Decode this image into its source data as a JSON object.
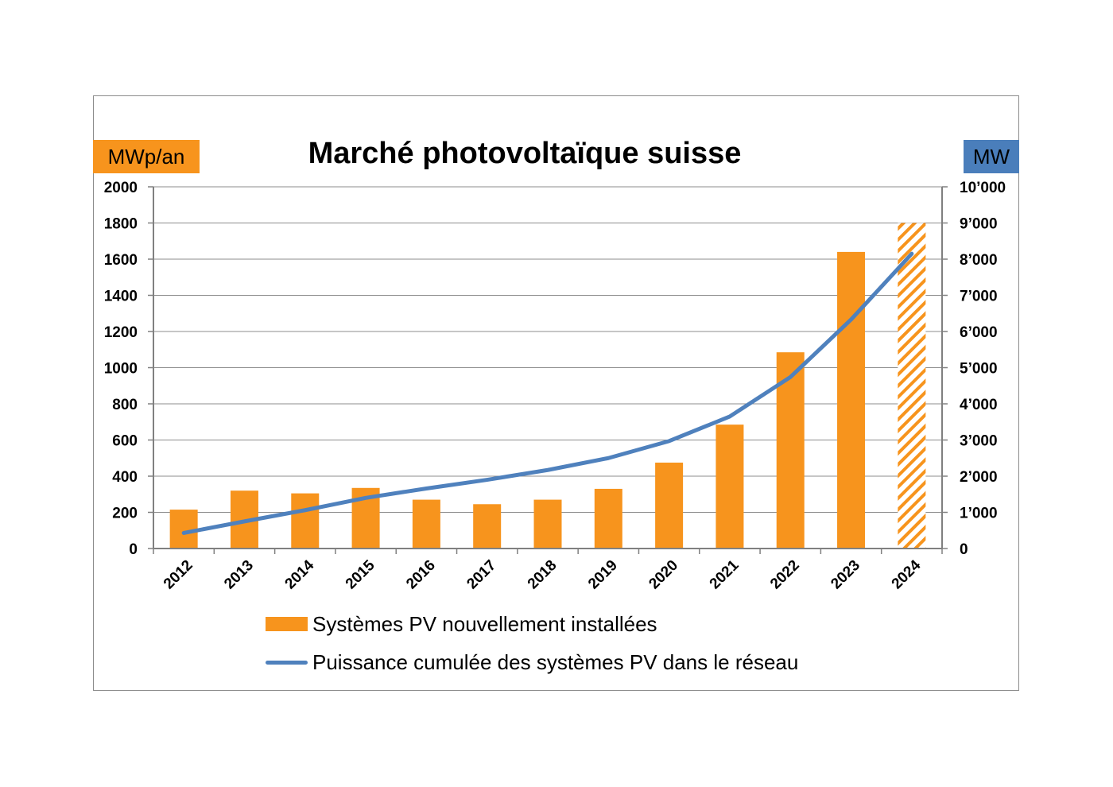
{
  "colors": {
    "bar": "#f7941d",
    "line": "#4f81bd",
    "unit_left_bg": "#f7941d",
    "unit_right_bg": "#4a7ebb",
    "grid": "#8c8c8c",
    "axis": "#808080"
  },
  "chart_data": {
    "type": "bar",
    "title": "Marché photovoltaïque suisse",
    "ylabel": "MWp/an",
    "y2label": "MW",
    "categories": [
      "2012",
      "2013",
      "2014",
      "2015",
      "2016",
      "2017",
      "2018",
      "2019",
      "2020",
      "2021",
      "2022",
      "2023",
      "2024"
    ],
    "series": [
      {
        "name": "Systèmes PV nouvellement installées",
        "type": "bar",
        "axis": "left",
        "values": [
          215,
          320,
          305,
          335,
          270,
          245,
          270,
          330,
          475,
          685,
          1085,
          1640,
          1800
        ],
        "hatched": [
          false,
          false,
          false,
          false,
          false,
          false,
          false,
          false,
          false,
          false,
          false,
          false,
          true
        ]
      },
      {
        "name": "Puissance cumulée des systèmes PV dans le réseau",
        "type": "line",
        "axis": "right",
        "values": [
          430,
          750,
          1060,
          1400,
          1660,
          1900,
          2170,
          2500,
          2970,
          3650,
          4740,
          6330,
          8150
        ]
      }
    ],
    "ylim": [
      0,
      2000
    ],
    "y2lim": [
      0,
      10000
    ],
    "yticks": [
      "0",
      "200",
      "400",
      "600",
      "800",
      "1000",
      "1200",
      "1400",
      "1600",
      "1800",
      "2000"
    ],
    "y2ticks": [
      "0",
      "1’000",
      "2’000",
      "3’000",
      "4’000",
      "5’000",
      "6’000",
      "7’000",
      "8’000",
      "9’000",
      "10’000"
    ],
    "grid": true,
    "legend_position": "bottom"
  }
}
